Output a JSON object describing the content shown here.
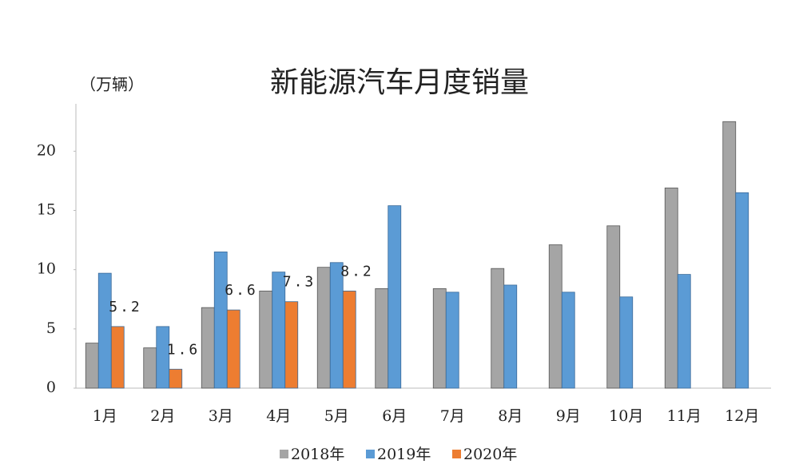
{
  "chart_data": {
    "type": "bar",
    "title": "新能源汽车月度销量",
    "y_unit": "（万辆）",
    "categories": [
      "1月",
      "2月",
      "3月",
      "4月",
      "5月",
      "6月",
      "7月",
      "8月",
      "9月",
      "10月",
      "11月",
      "12月"
    ],
    "series": [
      {
        "name": "2018年",
        "color": "#a5a5a5",
        "values": [
          3.8,
          3.4,
          6.8,
          8.2,
          10.2,
          8.4,
          8.4,
          10.1,
          12.1,
          13.7,
          16.9,
          22.5
        ]
      },
      {
        "name": "2019年",
        "color": "#5b9bd5",
        "values": [
          9.7,
          5.2,
          11.5,
          9.8,
          10.6,
          15.4,
          8.1,
          8.7,
          8.1,
          7.7,
          9.6,
          16.5
        ]
      },
      {
        "name": "2020年",
        "color": "#ed7d31",
        "values": [
          5.2,
          1.6,
          6.6,
          7.3,
          8.2,
          null,
          null,
          null,
          null,
          null,
          null,
          null
        ]
      }
    ],
    "ylim": [
      0,
      24
    ],
    "yticks": [
      0,
      5,
      10,
      15,
      20
    ],
    "grid": false,
    "data_labels_series": 2
  }
}
